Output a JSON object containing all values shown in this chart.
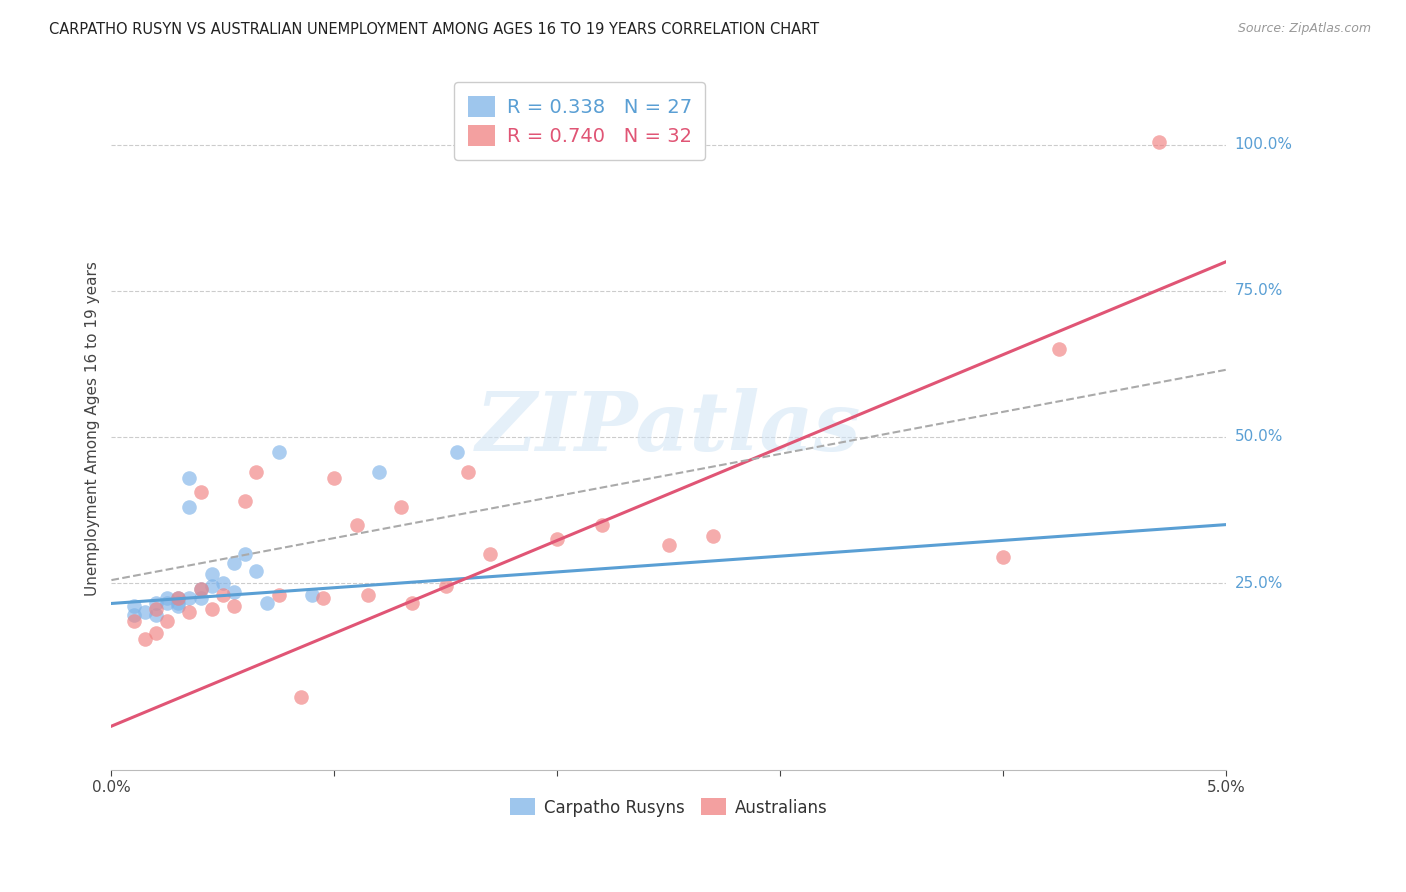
{
  "title": "CARPATHO RUSYN VS AUSTRALIAN UNEMPLOYMENT AMONG AGES 16 TO 19 YEARS CORRELATION CHART",
  "source": "Source: ZipAtlas.com",
  "ylabel": "Unemployment Among Ages 16 to 19 years",
  "background_color": "#ffffff",
  "grid_color": "#cccccc",
  "watermark_text": "ZIPatlas",
  "blue_color": "#7eb3e8",
  "pink_color": "#f08080",
  "blue_line_color": "#5a9fd4",
  "pink_line_color": "#e05575",
  "dash_line_color": "#aaaaaa",
  "axis_label_color": "#5a9fd4",
  "legend_label_blue": "Carpatho Rusyns",
  "legend_label_pink": "Australians",
  "legend_R_blue": "R = 0.338",
  "legend_N_blue": "N = 27",
  "legend_R_pink": "R = 0.740",
  "legend_N_pink": "N = 32",
  "xmin": 0.0,
  "xmax": 0.05,
  "ymin": -0.07,
  "ymax": 1.1,
  "blue_scatter_x": [
    0.001,
    0.001,
    0.0015,
    0.002,
    0.002,
    0.0025,
    0.0025,
    0.003,
    0.003,
    0.003,
    0.0035,
    0.0035,
    0.0035,
    0.004,
    0.004,
    0.0045,
    0.0045,
    0.005,
    0.0055,
    0.0055,
    0.006,
    0.0065,
    0.007,
    0.0075,
    0.009,
    0.012,
    0.0155
  ],
  "blue_scatter_y": [
    0.195,
    0.21,
    0.2,
    0.215,
    0.195,
    0.215,
    0.225,
    0.225,
    0.21,
    0.215,
    0.38,
    0.43,
    0.225,
    0.24,
    0.225,
    0.245,
    0.265,
    0.25,
    0.235,
    0.285,
    0.3,
    0.27,
    0.215,
    0.475,
    0.23,
    0.44,
    0.475
  ],
  "pink_scatter_x": [
    0.001,
    0.0015,
    0.002,
    0.002,
    0.0025,
    0.003,
    0.0035,
    0.004,
    0.004,
    0.0045,
    0.005,
    0.0055,
    0.006,
    0.0065,
    0.0075,
    0.0085,
    0.0095,
    0.01,
    0.011,
    0.0115,
    0.013,
    0.0135,
    0.015,
    0.016,
    0.017,
    0.02,
    0.022,
    0.025,
    0.027,
    0.04,
    0.0425,
    0.047
  ],
  "pink_scatter_y": [
    0.185,
    0.155,
    0.165,
    0.205,
    0.185,
    0.225,
    0.2,
    0.24,
    0.405,
    0.205,
    0.23,
    0.21,
    0.39,
    0.44,
    0.23,
    0.055,
    0.225,
    0.43,
    0.35,
    0.23,
    0.38,
    0.215,
    0.245,
    0.44,
    0.3,
    0.325,
    0.35,
    0.315,
    0.33,
    0.295,
    0.65,
    1.005
  ],
  "blue_line_x0": 0.0,
  "blue_line_x1": 0.05,
  "blue_line_y0": 0.215,
  "blue_line_y1": 0.35,
  "pink_line_x0": 0.0,
  "pink_line_x1": 0.05,
  "pink_line_y0": 0.005,
  "pink_line_y1": 0.8,
  "dash_line_x0": 0.0,
  "dash_line_x1": 0.05,
  "dash_line_y0": 0.255,
  "dash_line_y1": 0.615,
  "ytick_positions": [
    0.25,
    0.5,
    0.75,
    1.0
  ],
  "ytick_labels": [
    "25.0%",
    "50.0%",
    "75.0%",
    "100.0%"
  ],
  "xtick_positions": [
    0.0,
    0.01,
    0.02,
    0.03,
    0.04,
    0.05
  ],
  "xtick_labels": [
    "0.0%",
    "",
    "",
    "",
    "",
    "5.0%"
  ]
}
